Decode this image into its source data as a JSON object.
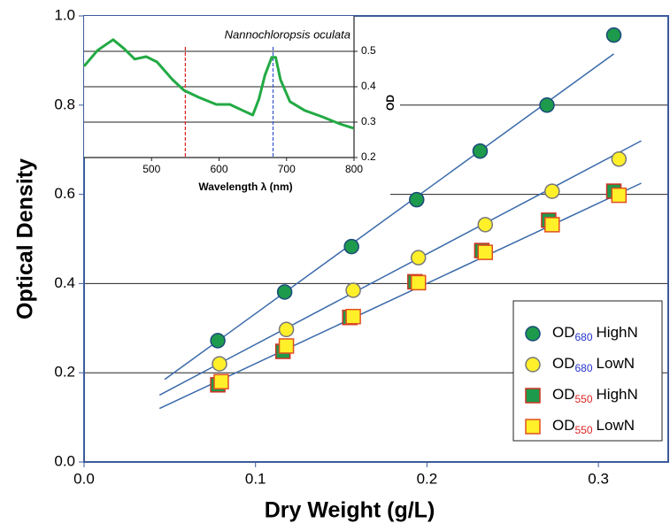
{
  "chart_data": [
    {
      "type": "scatter",
      "x_label": "Dry Weight (g/L)",
      "y_label": "Optical Density",
      "xlim": [
        0,
        0.342
      ],
      "ylim": [
        0,
        1
      ],
      "xticks": [
        {
          "value": 0,
          "label": "0.0"
        },
        {
          "value": 0.1,
          "label": "0.1"
        },
        {
          "value": 0.2,
          "label": "0.2"
        },
        {
          "value": 0.3,
          "label": "0.3"
        }
      ],
      "yticks": [
        {
          "value": 0,
          "label": "0.0"
        },
        {
          "value": 0.2,
          "label": "0.2"
        },
        {
          "value": 0.4,
          "label": "0.4"
        },
        {
          "value": 0.6,
          "label": "0.6"
        },
        {
          "value": 0.8,
          "label": "0.8"
        },
        {
          "value": 1,
          "label": "1.0"
        }
      ],
      "grid": true,
      "legend": "lower right",
      "series": [
        {
          "legend_label": {
            "main": "OD",
            "sub": "680",
            "tail": "HighN"
          },
          "sub_color": "#2233cc",
          "marker": "circle",
          "color": "#1e9a4c",
          "edge": "#1a4a7a",
          "x": [
            0.078,
            0.117,
            0.156,
            0.194,
            0.231,
            0.27,
            0.309
          ],
          "values": [
            0.272,
            0.381,
            0.483,
            0.588,
            0.697,
            0.8,
            0.957
          ]
        },
        {
          "legend_label": {
            "main": "OD",
            "sub": "680",
            "tail": "LowN"
          },
          "sub_color": "#2233cc",
          "marker": "circle",
          "color": "#fff02a",
          "edge": "#777777",
          "x": [
            0.079,
            0.118,
            0.157,
            0.195,
            0.234,
            0.273,
            0.312
          ],
          "values": [
            0.22,
            0.297,
            0.385,
            0.458,
            0.532,
            0.607,
            0.679
          ]
        },
        {
          "legend_label": {
            "main": "OD",
            "sub": "550",
            "tail": "HighN"
          },
          "sub_color": "#dd2222",
          "marker": "square",
          "color": "#1e9a4c",
          "edge": "#cc3322",
          "x": [
            0.078,
            0.116,
            0.155,
            0.193,
            0.232,
            0.271,
            0.309
          ],
          "values": [
            0.173,
            0.248,
            0.324,
            0.404,
            0.474,
            0.542,
            0.607
          ]
        },
        {
          "legend_label": {
            "main": "OD",
            "sub": "550",
            "tail": "LowN"
          },
          "sub_color": "#dd2222",
          "marker": "square",
          "color": "#fff02a",
          "edge": "#e05020",
          "x": [
            0.08,
            0.118,
            0.157,
            0.195,
            0.234,
            0.273,
            0.312
          ],
          "values": [
            0.18,
            0.26,
            0.326,
            0.402,
            0.47,
            0.532,
            0.598
          ]
        }
      ],
      "fit_lines": [
        {
          "color": "#3a6aaa",
          "x": [
            0.047,
            0.309
          ],
          "values": [
            0.185,
            0.915
          ]
        },
        {
          "color": "#3a6aaa",
          "x": [
            0.044,
            0.325
          ],
          "values": [
            0.15,
            0.72
          ]
        },
        {
          "color": "#3a6aaa",
          "x": [
            0.044,
            0.325
          ],
          "values": [
            0.12,
            0.625
          ]
        }
      ]
    },
    {
      "type": "line",
      "title": "Nannochloropsis oculata",
      "x_label": "Wavelength λ (nm)",
      "y_label": "OD",
      "xlim": [
        400,
        800
      ],
      "ylim": [
        0.2,
        0.6
      ],
      "xticks": [
        500,
        600,
        700,
        800
      ],
      "yticks": [
        0.2,
        0.3,
        0.4,
        0.5
      ],
      "grid": true,
      "series": [
        {
          "color": "#22aa44",
          "x": [
            400,
            420,
            443,
            459,
            475,
            492,
            508,
            531,
            548,
            570,
            596,
            616,
            635,
            650,
            659,
            668,
            678,
            684,
            691,
            705,
            727,
            753,
            779,
            799
          ],
          "values": [
            0.458,
            0.503,
            0.533,
            0.508,
            0.478,
            0.485,
            0.47,
            0.42,
            0.39,
            0.37,
            0.35,
            0.35,
            0.333,
            0.32,
            0.365,
            0.433,
            0.483,
            0.483,
            0.42,
            0.358,
            0.333,
            0.315,
            0.295,
            0.283
          ]
        }
      ],
      "markers": [
        {
          "x": 550,
          "color": "#dd2222"
        },
        {
          "x": 680,
          "color": "#3355cc"
        }
      ]
    }
  ]
}
